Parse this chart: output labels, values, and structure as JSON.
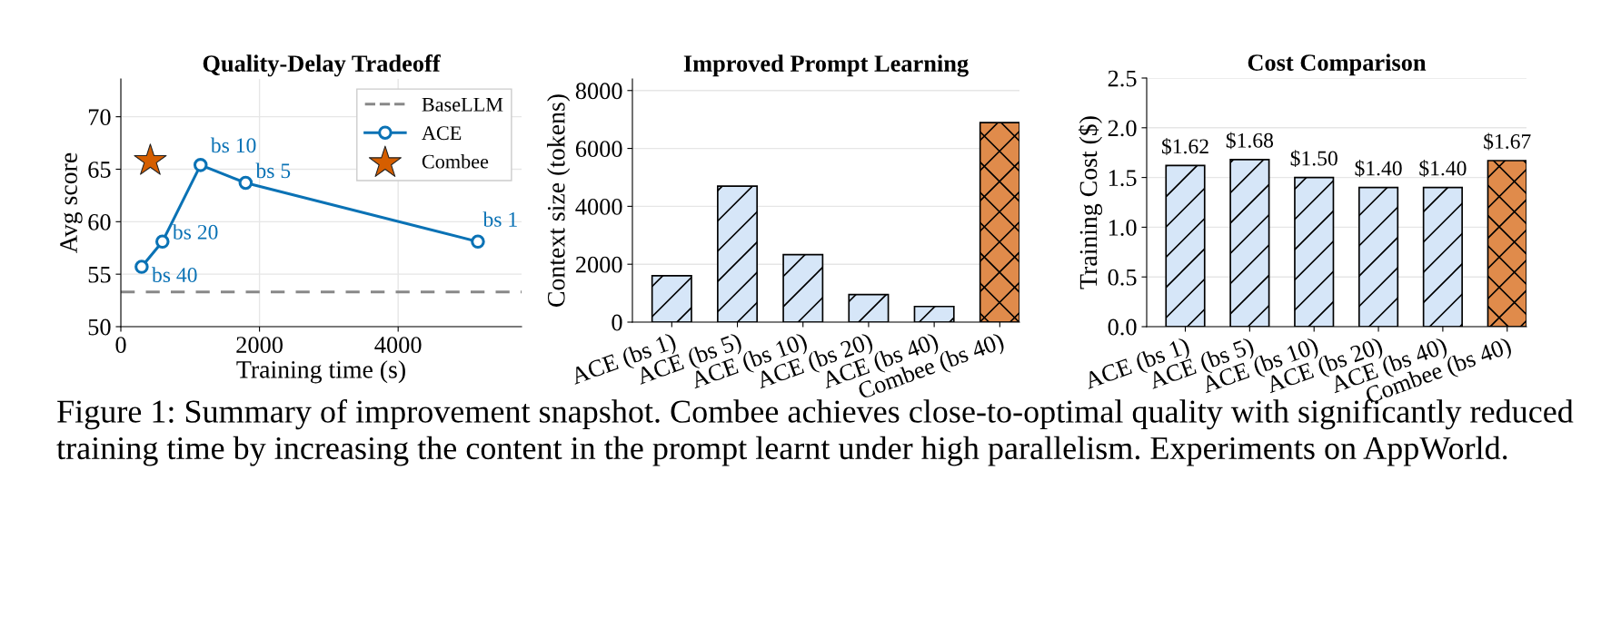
{
  "chart_data": [
    {
      "type": "line",
      "title": "Quality-Delay Tradeoff",
      "xlabel": "Training time (s)",
      "ylabel": "Avg score",
      "xlim": [
        0,
        5780
      ],
      "xticks": [
        0,
        2000,
        4000
      ],
      "ylim": [
        50,
        73.6
      ],
      "yticks": [
        50,
        55,
        60,
        65,
        70
      ],
      "grid": true,
      "legend": "top right",
      "series": [
        {
          "name": "ACE",
          "color": "#0a72b5",
          "x": [
            300,
            600,
            1150,
            1800,
            5150
          ],
          "values": [
            55.7,
            58.1,
            65.4,
            63.7,
            58.1
          ],
          "marker": "circle",
          "line_style": "solid"
        },
        {
          "name": "Combee",
          "type": "scatter",
          "color": "#d55e00",
          "x": [
            425
          ],
          "values": [
            65.8
          ],
          "marker": "star"
        }
      ],
      "ref_lines": [
        {
          "axis": "y",
          "value": 53.3,
          "label": "BaseLLM",
          "color": "#888888",
          "line_style": "dashed"
        }
      ],
      "annotations": [
        {
          "text": "bs 40",
          "x": 300,
          "y": 55.7
        },
        {
          "text": "bs 20",
          "x": 600,
          "y": 58.1
        },
        {
          "text": "bs 10",
          "x": 1150,
          "y": 65.4
        },
        {
          "text": "bs 5",
          "x": 1800,
          "y": 63.7
        },
        {
          "text": "bs 1",
          "x": 5150,
          "y": 58.1
        },
        "Figure 1: Summary of improvement snapshot. Combee achieves close-to-optimal quality with significantly reduced training time by increasing the content in the prompt learnt under high parallelism. Experiments on AppWorld."
      ]
    },
    {
      "type": "bar",
      "title": "Improved Prompt Learning",
      "ylabel": "Context size (tokens)",
      "categories": [
        "ACE (bs 1)",
        "ACE (bs 5)",
        "ACE (bs 10)",
        "ACE (bs 20)",
        "ACE (bs 40)",
        "Combee (bs 40)"
      ],
      "values": [
        1600,
        4700,
        2330,
        950,
        540,
        6890
      ],
      "colors": [
        "#d6e6f8",
        "#d6e6f8",
        "#d6e6f8",
        "#d6e6f8",
        "#d6e6f8",
        "#e08b4b"
      ],
      "ylim": [
        0,
        8400
      ],
      "yticks": [
        0,
        2000,
        4000,
        6000,
        8000
      ],
      "grid": "y"
    },
    {
      "type": "bar",
      "title": "Cost Comparison",
      "ylabel": "Training Cost ($)",
      "categories": [
        "ACE (bs 1)",
        "ACE (bs 5)",
        "ACE (bs 10)",
        "ACE (bs 20)",
        "ACE (bs 40)",
        "Combee (bs 40)"
      ],
      "values": [
        1.62,
        1.68,
        1.5,
        1.4,
        1.4,
        1.67
      ],
      "value_labels": [
        "$1.62",
        "$1.68",
        "$1.50",
        "$1.40",
        "$1.40",
        "$1.67"
      ],
      "colors": [
        "#d6e6f8",
        "#d6e6f8",
        "#d6e6f8",
        "#d6e6f8",
        "#d6e6f8",
        "#e08b4b"
      ],
      "ylim": [
        0,
        2.5
      ],
      "yticks": [
        {
          "value": 0,
          "label": "0.0"
        },
        0.5,
        {
          "value": 1,
          "label": "1.0"
        },
        1.5,
        {
          "value": 2,
          "label": "2.0"
        },
        2.5
      ],
      "grid": "y"
    }
  ]
}
